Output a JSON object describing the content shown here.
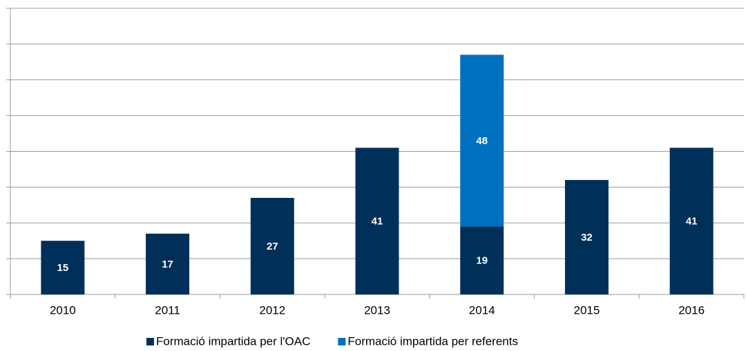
{
  "chart_data": {
    "type": "stacked_bar",
    "categories": [
      "2010",
      "2011",
      "2012",
      "2013",
      "2014",
      "2015",
      "2016"
    ],
    "series": [
      {
        "name": "Formació impartida per l'OAC",
        "color": "#00305a",
        "values": [
          15,
          17,
          27,
          41,
          19,
          32,
          41
        ]
      },
      {
        "name": "Formació impartida per referents",
        "color": "#0070c0",
        "values": [
          null,
          null,
          null,
          null,
          48,
          null,
          null
        ]
      }
    ],
    "ylim": [
      0,
      80
    ],
    "yticks": [
      0,
      10,
      20,
      30,
      40,
      50,
      60,
      70,
      80
    ],
    "grid": true,
    "legend": "bottom"
  }
}
